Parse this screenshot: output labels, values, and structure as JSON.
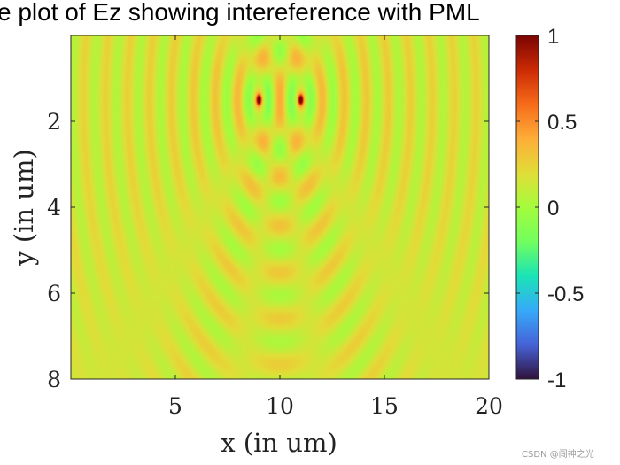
{
  "chart_data": {
    "type": "heatmap",
    "title": "e plot of Ez showing intereference with PML",
    "xlabel": "x (in um)",
    "ylabel": "y (in um)",
    "xlim": [
      0,
      20
    ],
    "ylim": [
      0,
      8
    ],
    "y_direction": "reverse",
    "x_ticks": [
      5,
      10,
      15,
      20
    ],
    "x_tick_labels": [
      "5",
      "10",
      "15",
      "20"
    ],
    "y_ticks": [
      2,
      4,
      6,
      8
    ],
    "y_tick_labels": [
      "2",
      "4",
      "6",
      "8"
    ],
    "colormap": "turbo",
    "clim": [
      -1,
      1
    ],
    "colorbar_ticks": [
      1,
      0.5,
      0,
      -0.5,
      -1
    ],
    "colorbar_tick_labels": [
      "1",
      "0.5",
      "0",
      "-0.5",
      "-1"
    ],
    "sources": [
      {
        "x": 9,
        "y": 1.5,
        "peak": 0.9
      },
      {
        "x": 11,
        "y": 1.5,
        "peak": 0.9
      }
    ],
    "background_value": 0.15
  },
  "watermark": "CSDN @闯神之光"
}
